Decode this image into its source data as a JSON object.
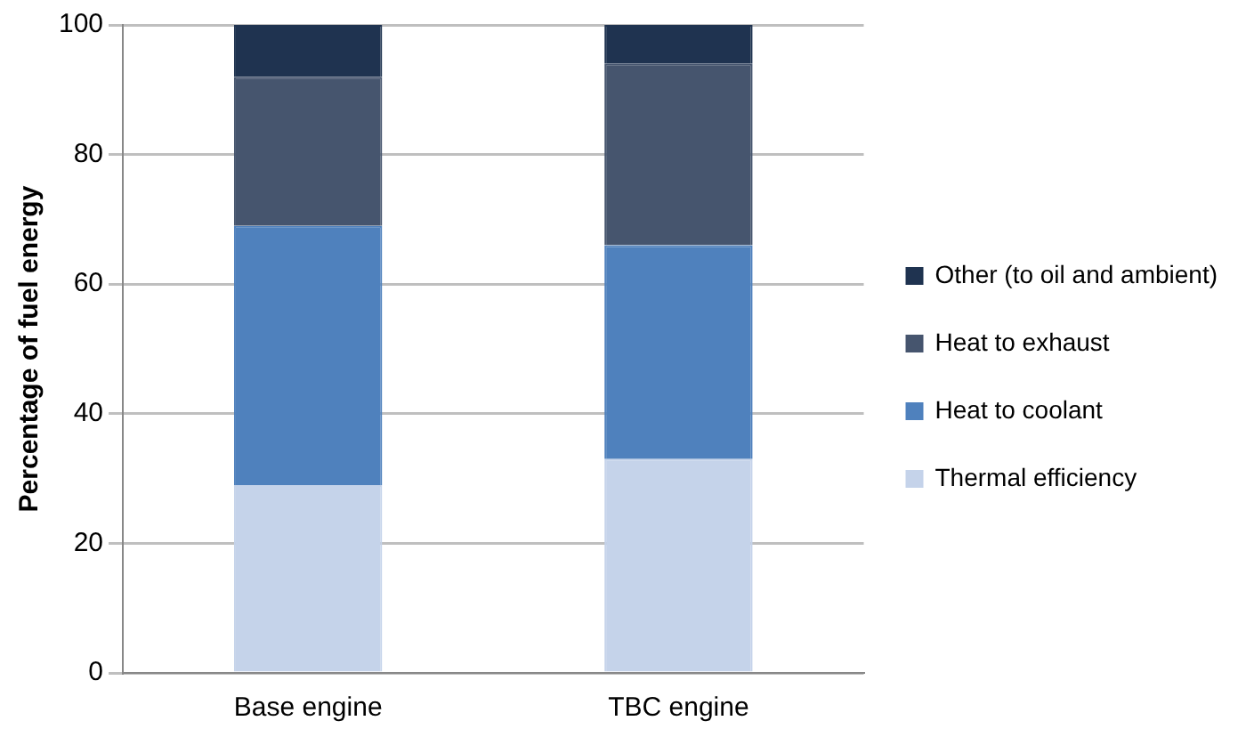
{
  "chart_data": {
    "type": "bar",
    "stacked": true,
    "ylabel": "Percentage of fuel energy",
    "categories": [
      "Base engine",
      "TBC engine"
    ],
    "series": [
      {
        "name": "Thermal efficiency",
        "color": "#c5d3ea",
        "values": [
          29,
          33
        ]
      },
      {
        "name": "Heat to coolant",
        "color": "#4f81bd",
        "values": [
          40,
          33
        ]
      },
      {
        "name": "Heat to exhaust",
        "color": "#46556e",
        "values": [
          23,
          28
        ]
      },
      {
        "name": "Other (to oil and ambient)",
        "color": "#1f3350",
        "values": [
          8,
          6
        ]
      }
    ],
    "ylim": [
      0,
      100
    ],
    "yticks": [
      0,
      20,
      40,
      60,
      80,
      100
    ],
    "grid": "y",
    "legend": "right"
  }
}
